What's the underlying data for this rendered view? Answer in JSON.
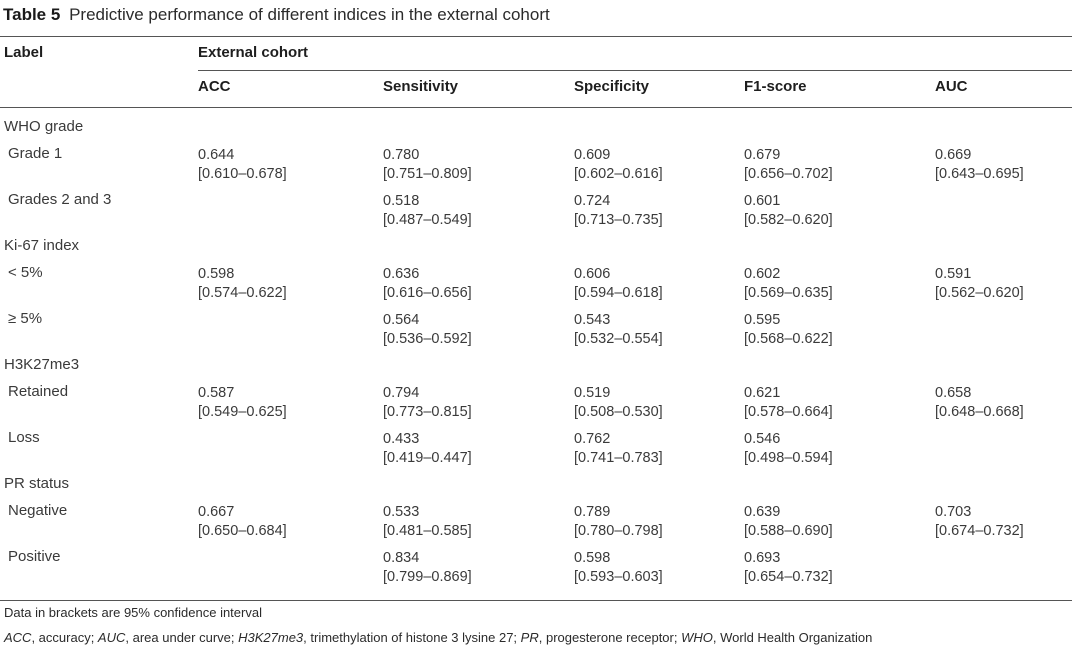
{
  "caption": {
    "label": "Table 5",
    "text": "Predictive performance of different indices in the external cohort"
  },
  "header": {
    "label": "Label",
    "group": "External cohort",
    "columns": [
      "ACC",
      "Sensitivity",
      "Specificity",
      "F1-score",
      "AUC"
    ]
  },
  "groups": [
    {
      "title": "WHO grade",
      "rows": [
        {
          "label": "Grade 1",
          "cells": [
            [
              "0.644",
              "[0.610–0.678]"
            ],
            [
              "0.780",
              "[0.751–0.809]"
            ],
            [
              "0.609",
              "[0.602–0.616]"
            ],
            [
              "0.679",
              "[0.656–0.702]"
            ],
            [
              "0.669",
              "[0.643–0.695]"
            ]
          ]
        },
        {
          "label": "Grades 2 and 3",
          "cells": [
            null,
            [
              "0.518",
              "[0.487–0.549]"
            ],
            [
              "0.724",
              "[0.713–0.735]"
            ],
            [
              "0.601",
              "[0.582–0.620]"
            ],
            null
          ]
        }
      ]
    },
    {
      "title": "Ki-67 index",
      "rows": [
        {
          "label": "< 5%",
          "cells": [
            [
              "0.598",
              "[0.574–0.622]"
            ],
            [
              "0.636",
              "[0.616–0.656]"
            ],
            [
              "0.606",
              "[0.594–0.618]"
            ],
            [
              "0.602",
              "[0.569–0.635]"
            ],
            [
              "0.591",
              "[0.562–0.620]"
            ]
          ]
        },
        {
          "label": "≥ 5%",
          "cells": [
            null,
            [
              "0.564",
              "[0.536–0.592]"
            ],
            [
              "0.543",
              "[0.532–0.554]"
            ],
            [
              "0.595",
              "[0.568–0.622]"
            ],
            null
          ]
        }
      ]
    },
    {
      "title": "H3K27me3",
      "rows": [
        {
          "label": "Retained",
          "cells": [
            [
              "0.587",
              "[0.549–0.625]"
            ],
            [
              "0.794",
              "[0.773–0.815]"
            ],
            [
              "0.519",
              "[0.508–0.530]"
            ],
            [
              "0.621",
              "[0.578–0.664]"
            ],
            [
              "0.658",
              "[0.648–0.668]"
            ]
          ]
        },
        {
          "label": "Loss",
          "cells": [
            null,
            [
              "0.433",
              "[0.419–0.447]"
            ],
            [
              "0.762",
              "[0.741–0.783]"
            ],
            [
              "0.546",
              "[0.498–0.594]"
            ],
            null
          ]
        }
      ]
    },
    {
      "title": "PR status",
      "rows": [
        {
          "label": "Negative",
          "cells": [
            [
              "0.667",
              "[0.650–0.684]"
            ],
            [
              "0.533",
              "[0.481–0.585]"
            ],
            [
              "0.789",
              "[0.780–0.798]"
            ],
            [
              "0.639",
              "[0.588–0.690]"
            ],
            [
              "0.703",
              "[0.674–0.732]"
            ]
          ]
        },
        {
          "label": "Positive",
          "cells": [
            null,
            [
              "0.834",
              "[0.799–0.869]"
            ],
            [
              "0.598",
              "[0.593–0.603]"
            ],
            [
              "0.693",
              "[0.654–0.732]"
            ],
            null
          ]
        }
      ]
    }
  ],
  "footnotes": {
    "line1": "Data in brackets are 95% confidence interval",
    "abbreviations": [
      {
        "abbr": "ACC",
        "text": ", accuracy; "
      },
      {
        "abbr": "AUC",
        "text": ", area under curve; "
      },
      {
        "abbr": "H3K27me3",
        "text": ", trimethylation of histone 3 lysine 27; "
      },
      {
        "abbr": "PR",
        "text": ", progesterone receptor; "
      },
      {
        "abbr": "WHO",
        "text": ", World Health Organization"
      }
    ]
  }
}
